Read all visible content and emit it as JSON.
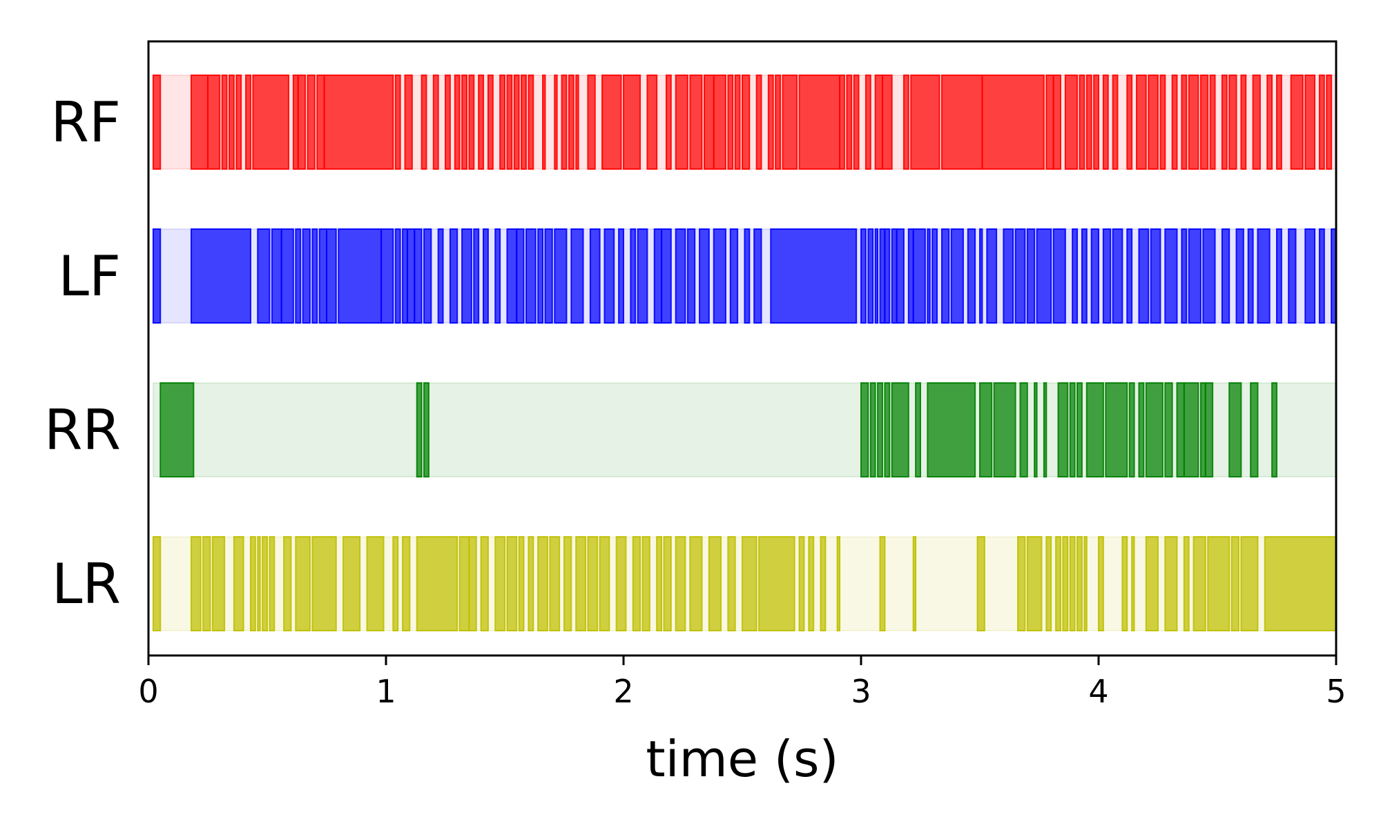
{
  "chart_data": {
    "type": "timeline",
    "xlabel": "time (s)",
    "xlim": [
      0,
      5
    ],
    "x_ticks": [
      0,
      1,
      2,
      3,
      4,
      5
    ],
    "x_tick_labels": [
      "0",
      "1",
      "2",
      "3",
      "4",
      "5"
    ],
    "grid": false,
    "legend": "none",
    "series": [
      {
        "name": "RF",
        "color": "#ff0000",
        "intervals": [
          [
            0.02,
            0.05
          ],
          [
            0.18,
            0.25
          ],
          [
            0.25,
            0.3
          ],
          [
            0.31,
            0.33
          ],
          [
            0.34,
            0.36
          ],
          [
            0.37,
            0.39
          ],
          [
            0.41,
            0.43
          ],
          [
            0.44,
            0.59
          ],
          [
            0.61,
            0.63
          ],
          [
            0.63,
            0.66
          ],
          [
            0.67,
            0.7
          ],
          [
            0.71,
            0.74
          ],
          [
            0.74,
            1.03
          ],
          [
            1.04,
            1.06
          ],
          [
            1.08,
            1.11
          ],
          [
            1.15,
            1.17
          ],
          [
            1.2,
            1.22
          ],
          [
            1.25,
            1.27
          ],
          [
            1.29,
            1.31
          ],
          [
            1.32,
            1.34
          ],
          [
            1.35,
            1.37
          ],
          [
            1.39,
            1.41
          ],
          [
            1.43,
            1.45
          ],
          [
            1.48,
            1.5
          ],
          [
            1.51,
            1.53
          ],
          [
            1.54,
            1.56
          ],
          [
            1.57,
            1.59
          ],
          [
            1.6,
            1.62
          ],
          [
            1.66,
            1.67
          ],
          [
            1.71,
            1.72
          ],
          [
            1.74,
            1.76
          ],
          [
            1.77,
            1.79
          ],
          [
            1.8,
            1.81
          ],
          [
            1.85,
            1.88
          ],
          [
            1.91,
            1.99
          ],
          [
            2.0,
            2.07
          ],
          [
            2.1,
            2.14
          ],
          [
            2.18,
            2.2
          ],
          [
            2.22,
            2.27
          ],
          [
            2.28,
            2.33
          ],
          [
            2.34,
            2.38
          ],
          [
            2.38,
            2.43
          ],
          [
            2.44,
            2.46
          ],
          [
            2.47,
            2.49
          ],
          [
            2.5,
            2.53
          ],
          [
            2.56,
            2.58
          ],
          [
            2.61,
            2.63
          ],
          [
            2.64,
            2.66
          ],
          [
            2.67,
            2.73
          ],
          [
            2.74,
            2.91
          ],
          [
            2.91,
            2.93
          ],
          [
            2.94,
            2.96
          ],
          [
            2.97,
            2.99
          ],
          [
            3.02,
            3.04
          ],
          [
            3.06,
            3.09
          ],
          [
            3.09,
            3.13
          ],
          [
            3.18,
            3.2
          ],
          [
            3.21,
            3.33
          ],
          [
            3.34,
            3.51
          ],
          [
            3.51,
            3.77
          ],
          [
            3.78,
            3.81
          ],
          [
            3.81,
            3.84
          ],
          [
            3.86,
            3.91
          ],
          [
            3.92,
            3.94
          ],
          [
            3.95,
            3.97
          ],
          [
            3.98,
            4.0
          ],
          [
            4.02,
            4.04
          ],
          [
            4.06,
            4.08
          ],
          [
            4.12,
            4.14
          ],
          [
            4.16,
            4.2
          ],
          [
            4.21,
            4.25
          ],
          [
            4.26,
            4.28
          ],
          [
            4.31,
            4.33
          ],
          [
            4.35,
            4.37
          ],
          [
            4.38,
            4.42
          ],
          [
            4.43,
            4.46
          ],
          [
            4.47,
            4.49
          ],
          [
            4.52,
            4.54
          ],
          [
            4.55,
            4.58
          ],
          [
            4.6,
            4.62
          ],
          [
            4.65,
            4.68
          ],
          [
            4.71,
            4.73
          ],
          [
            4.75,
            4.77
          ],
          [
            4.81,
            4.86
          ],
          [
            4.87,
            4.91
          ],
          [
            4.93,
            4.95
          ],
          [
            4.96,
            4.98
          ],
          [
            5.0,
            5.02
          ],
          [
            5.02,
            5.04
          ],
          [
            5.05,
            5.22
          ]
        ]
      },
      {
        "name": "LF",
        "color": "#0000ff",
        "intervals": [
          [
            0.02,
            0.05
          ],
          [
            0.18,
            0.43
          ],
          [
            0.46,
            0.51
          ],
          [
            0.52,
            0.56
          ],
          [
            0.56,
            0.61
          ],
          [
            0.62,
            0.64
          ],
          [
            0.65,
            0.68
          ],
          [
            0.69,
            0.71
          ],
          [
            0.72,
            0.75
          ],
          [
            0.75,
            0.79
          ],
          [
            0.8,
            0.98
          ],
          [
            0.98,
            1.03
          ],
          [
            1.04,
            1.06
          ],
          [
            1.07,
            1.09
          ],
          [
            1.09,
            1.12
          ],
          [
            1.12,
            1.15
          ],
          [
            1.16,
            1.19
          ],
          [
            1.22,
            1.24
          ],
          [
            1.27,
            1.3
          ],
          [
            1.32,
            1.36
          ],
          [
            1.37,
            1.39
          ],
          [
            1.41,
            1.43
          ],
          [
            1.46,
            1.48
          ],
          [
            1.51,
            1.55
          ],
          [
            1.55,
            1.58
          ],
          [
            1.59,
            1.63
          ],
          [
            1.64,
            1.66
          ],
          [
            1.67,
            1.7
          ],
          [
            1.71,
            1.76
          ],
          [
            1.78,
            1.83
          ],
          [
            1.86,
            1.9
          ],
          [
            1.92,
            1.96
          ],
          [
            1.98,
            2.0
          ],
          [
            2.03,
            2.05
          ],
          [
            2.06,
            2.1
          ],
          [
            2.13,
            2.16
          ],
          [
            2.16,
            2.2
          ],
          [
            2.22,
            2.26
          ],
          [
            2.27,
            2.3
          ],
          [
            2.32,
            2.36
          ],
          [
            2.38,
            2.43
          ],
          [
            2.45,
            2.48
          ],
          [
            2.51,
            2.53
          ],
          [
            2.55,
            2.58
          ],
          [
            2.62,
            2.98
          ],
          [
            3.0,
            3.02
          ],
          [
            3.03,
            3.05
          ],
          [
            3.06,
            3.07
          ],
          [
            3.08,
            3.1
          ],
          [
            3.1,
            3.12
          ],
          [
            3.13,
            3.15
          ],
          [
            3.15,
            3.18
          ],
          [
            3.2,
            3.22
          ],
          [
            3.22,
            3.27
          ],
          [
            3.28,
            3.29
          ],
          [
            3.3,
            3.32
          ],
          [
            3.34,
            3.37
          ],
          [
            3.38,
            3.43
          ],
          [
            3.45,
            3.48
          ],
          [
            3.5,
            3.51
          ],
          [
            3.53,
            3.57
          ],
          [
            3.6,
            3.64
          ],
          [
            3.65,
            3.69
          ],
          [
            3.7,
            3.73
          ],
          [
            3.74,
            3.8
          ],
          [
            3.81,
            3.86
          ],
          [
            3.89,
            3.91
          ],
          [
            3.93,
            3.95
          ],
          [
            3.97,
            4.0
          ],
          [
            4.02,
            4.05
          ],
          [
            4.06,
            4.1
          ],
          [
            4.12,
            4.14
          ],
          [
            4.17,
            4.21
          ],
          [
            4.22,
            4.26
          ],
          [
            4.28,
            4.33
          ],
          [
            4.35,
            4.37
          ],
          [
            4.38,
            4.43
          ],
          [
            4.44,
            4.49
          ],
          [
            4.52,
            4.55
          ],
          [
            4.58,
            4.61
          ],
          [
            4.63,
            4.65
          ],
          [
            4.67,
            4.72
          ],
          [
            4.75,
            4.77
          ],
          [
            4.8,
            4.83
          ],
          [
            4.87,
            4.91
          ],
          [
            4.93,
            4.95
          ],
          [
            4.98,
            5.05
          ]
        ]
      },
      {
        "name": "RR",
        "color": "#008000",
        "intervals": [
          [
            0.05,
            0.19
          ],
          [
            1.13,
            1.15
          ],
          [
            1.16,
            1.18
          ],
          [
            3.0,
            3.03
          ],
          [
            3.04,
            3.06
          ],
          [
            3.07,
            3.09
          ],
          [
            3.1,
            3.12
          ],
          [
            3.13,
            3.2
          ],
          [
            3.23,
            3.25
          ],
          [
            3.28,
            3.48
          ],
          [
            3.5,
            3.55
          ],
          [
            3.56,
            3.65
          ],
          [
            3.67,
            3.7
          ],
          [
            3.73,
            3.74
          ],
          [
            3.77,
            3.78
          ],
          [
            3.83,
            3.87
          ],
          [
            3.88,
            3.9
          ],
          [
            3.91,
            3.93
          ],
          [
            3.95,
            4.02
          ],
          [
            4.03,
            4.12
          ],
          [
            4.13,
            4.15
          ],
          [
            4.17,
            4.19
          ],
          [
            4.2,
            4.27
          ],
          [
            4.28,
            4.31
          ],
          [
            4.33,
            4.36
          ],
          [
            4.36,
            4.42
          ],
          [
            4.43,
            4.45
          ],
          [
            4.45,
            4.48
          ],
          [
            4.55,
            4.6
          ],
          [
            4.64,
            4.67
          ],
          [
            4.73,
            4.75
          ]
        ]
      },
      {
        "name": "LR",
        "color": "#bfbf00",
        "intervals": [
          [
            0.02,
            0.05
          ],
          [
            0.18,
            0.22
          ],
          [
            0.23,
            0.26
          ],
          [
            0.27,
            0.32
          ],
          [
            0.36,
            0.4
          ],
          [
            0.43,
            0.45
          ],
          [
            0.46,
            0.47
          ],
          [
            0.48,
            0.5
          ],
          [
            0.51,
            0.53
          ],
          [
            0.57,
            0.6
          ],
          [
            0.62,
            0.68
          ],
          [
            0.69,
            0.79
          ],
          [
            0.82,
            0.89
          ],
          [
            0.92,
            0.99
          ],
          [
            1.03,
            1.05
          ],
          [
            1.07,
            1.1
          ],
          [
            1.13,
            1.3
          ],
          [
            1.31,
            1.35
          ],
          [
            1.35,
            1.38
          ],
          [
            1.4,
            1.43
          ],
          [
            1.46,
            1.5
          ],
          [
            1.51,
            1.55
          ],
          [
            1.56,
            1.58
          ],
          [
            1.6,
            1.62
          ],
          [
            1.64,
            1.68
          ],
          [
            1.69,
            1.73
          ],
          [
            1.75,
            1.78
          ],
          [
            1.8,
            1.84
          ],
          [
            1.85,
            1.89
          ],
          [
            1.9,
            1.94
          ],
          [
            1.97,
            2.01
          ],
          [
            2.04,
            2.07
          ],
          [
            2.08,
            2.11
          ],
          [
            2.14,
            2.16
          ],
          [
            2.17,
            2.2
          ],
          [
            2.22,
            2.26
          ],
          [
            2.28,
            2.33
          ],
          [
            2.36,
            2.41
          ],
          [
            2.44,
            2.47
          ],
          [
            2.5,
            2.56
          ],
          [
            2.57,
            2.72
          ],
          [
            2.74,
            2.76
          ],
          [
            2.78,
            2.8
          ],
          [
            2.83,
            2.85
          ],
          [
            2.9,
            2.91
          ],
          [
            3.08,
            3.1
          ],
          [
            3.22,
            3.23
          ],
          [
            3.49,
            3.52
          ],
          [
            3.66,
            3.69
          ],
          [
            3.7,
            3.76
          ],
          [
            3.78,
            3.8
          ],
          [
            3.82,
            3.84
          ],
          [
            3.85,
            3.87
          ],
          [
            3.88,
            3.9
          ],
          [
            3.91,
            3.93
          ],
          [
            3.94,
            3.95
          ],
          [
            4.0,
            4.02
          ],
          [
            4.1,
            4.12
          ],
          [
            4.14,
            4.15
          ],
          [
            4.2,
            4.25
          ],
          [
            4.28,
            4.33
          ],
          [
            4.36,
            4.38
          ],
          [
            4.4,
            4.45
          ],
          [
            4.46,
            4.55
          ],
          [
            4.56,
            4.59
          ],
          [
            4.6,
            4.67
          ],
          [
            4.7,
            5.0
          ],
          [
            5.01,
            5.04
          ]
        ]
      }
    ]
  }
}
